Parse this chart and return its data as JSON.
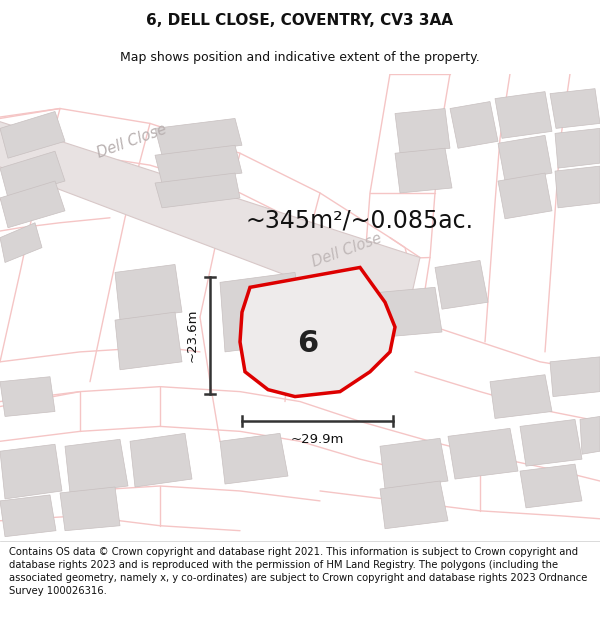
{
  "title": "6, DELL CLOSE, COVENTRY, CV3 3AA",
  "subtitle": "Map shows position and indicative extent of the property.",
  "area_text": "~345m²/~0.085ac.",
  "property_number": "6",
  "dim_vertical": "~23.6m",
  "dim_horizontal": "~29.9m",
  "road_label1": "Dell Close",
  "road_label2": "Dell Close",
  "footer": "Contains OS data © Crown copyright and database right 2021. This information is subject to Crown copyright and database rights 2023 and is reproduced with the permission of HM Land Registry. The polygons (including the associated geometry, namely x, y co-ordinates) are subject to Crown copyright and database rights 2023 Ordnance Survey 100026316.",
  "map_bg": "#ffffff",
  "road_outline_color": "#f5c5c5",
  "road_fill_color": "#f8eded",
  "building_color": "#d8d4d4",
  "building_edge_color": "#c8c0c0",
  "property_fill": "#eeebeb",
  "property_line": "#dd0000",
  "dim_line_color": "#333333",
  "road_label_color": "#c0b8b8",
  "title_fontsize": 11,
  "subtitle_fontsize": 9,
  "area_fontsize": 17,
  "footer_fontsize": 7.2
}
